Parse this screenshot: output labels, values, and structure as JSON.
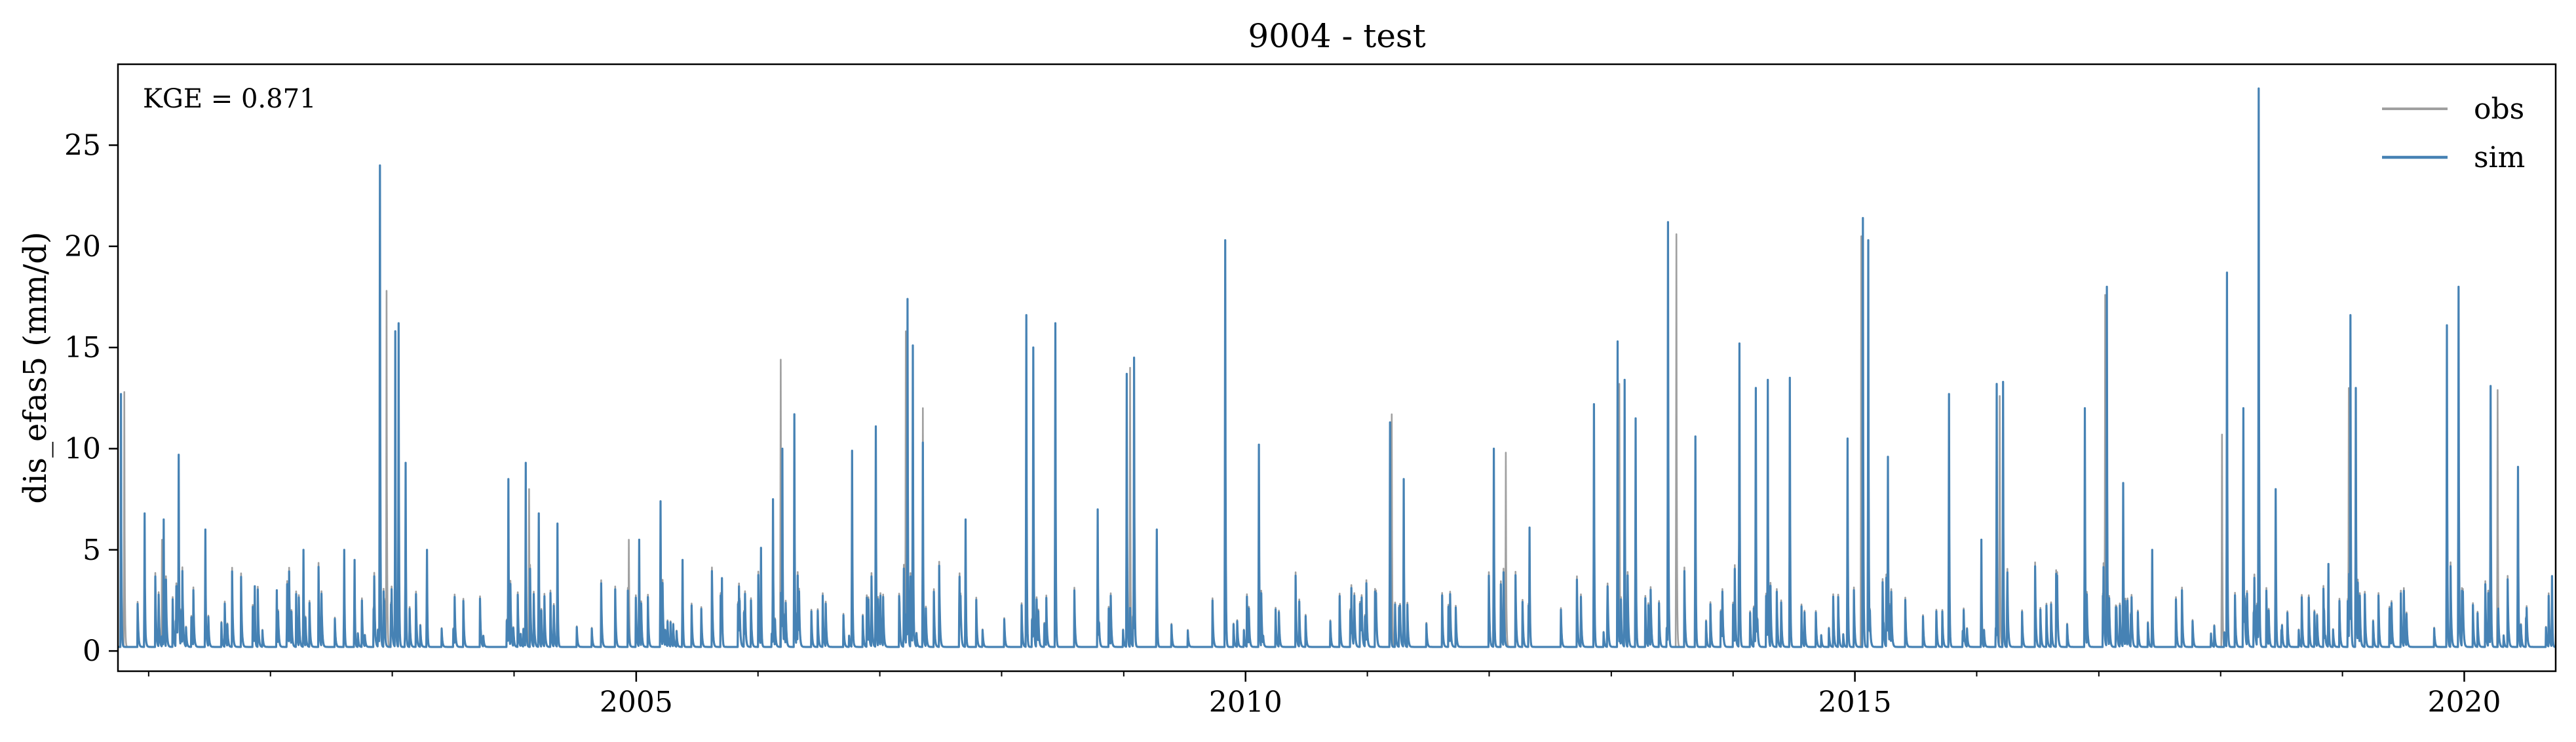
{
  "chart_data": {
    "type": "line",
    "title": "9004 - test",
    "xlabel": "",
    "ylabel": "dis_efas5 (mm/d)",
    "xlim": [
      "2000-10-01",
      "2020-10-01"
    ],
    "ylim": [
      -1,
      29
    ],
    "x_ticks": [
      {
        "date": "2005-01-01",
        "label": "2005"
      },
      {
        "date": "2010-01-01",
        "label": "2010"
      },
      {
        "date": "2015-01-01",
        "label": "2015"
      },
      {
        "date": "2020-01-01",
        "label": "2020"
      }
    ],
    "y_ticks": [
      0,
      5,
      10,
      15,
      20,
      25
    ],
    "grid": false,
    "legend_position": "upper right",
    "annotation": "KGE = 0.871",
    "baseflow": 0.2,
    "series": [
      {
        "name": "obs",
        "color": "#a0a0a0",
        "peaks": [
          [
            "2000-10-20",
            12.8
          ],
          [
            "2001-02-10",
            5.5
          ],
          [
            "2002-12-15",
            17.8
          ],
          [
            "2003-01-20",
            9.0
          ],
          [
            "2004-02-15",
            8.0
          ],
          [
            "2004-12-10",
            5.5
          ],
          [
            "2006-03-10",
            14.4
          ],
          [
            "2007-03-20",
            15.8
          ],
          [
            "2007-05-10",
            12.0
          ],
          [
            "2008-03-15",
            14.8
          ],
          [
            "2009-01-20",
            14.0
          ],
          [
            "2009-11-01",
            19.0
          ],
          [
            "2011-03-15",
            11.7
          ],
          [
            "2012-02-20",
            9.8
          ],
          [
            "2013-01-25",
            13.2
          ],
          [
            "2013-07-15",
            20.6
          ],
          [
            "2015-01-20",
            20.5
          ],
          [
            "2016-03-10",
            12.6
          ],
          [
            "2017-01-20",
            17.6
          ],
          [
            "2018-01-05",
            10.7
          ],
          [
            "2018-04-25",
            27.0
          ],
          [
            "2019-01-20",
            13.0
          ],
          [
            "2019-12-15",
            17.8
          ],
          [
            "2020-04-10",
            12.9
          ]
        ]
      },
      {
        "name": "sim",
        "color": "#4682b4",
        "peaks": [
          [
            "2000-10-10",
            12.7
          ],
          [
            "2000-12-20",
            6.8
          ],
          [
            "2001-02-15",
            6.5
          ],
          [
            "2001-04-01",
            9.7
          ],
          [
            "2001-06-20",
            6.0
          ],
          [
            "2001-11-15",
            3.2
          ],
          [
            "2002-01-20",
            3.0
          ],
          [
            "2002-04-10",
            5.0
          ],
          [
            "2002-08-10",
            5.0
          ],
          [
            "2002-09-10",
            4.5
          ],
          [
            "2002-11-25",
            24.0
          ],
          [
            "2003-01-10",
            15.8
          ],
          [
            "2003-01-20",
            16.2
          ],
          [
            "2003-02-10",
            9.3
          ],
          [
            "2003-04-15",
            5.0
          ],
          [
            "2003-12-15",
            8.5
          ],
          [
            "2004-02-05",
            9.3
          ],
          [
            "2004-03-15",
            6.8
          ],
          [
            "2004-05-10",
            6.3
          ],
          [
            "2005-01-10",
            5.5
          ],
          [
            "2005-03-15",
            7.4
          ],
          [
            "2005-05-20",
            4.5
          ],
          [
            "2005-09-15",
            3.6
          ],
          [
            "2006-01-10",
            5.1
          ],
          [
            "2006-02-15",
            7.5
          ],
          [
            "2006-03-15",
            10.0
          ],
          [
            "2006-04-20",
            11.7
          ],
          [
            "2006-10-10",
            9.9
          ],
          [
            "2006-12-20",
            11.1
          ],
          [
            "2007-03-25",
            17.4
          ],
          [
            "2007-04-10",
            15.1
          ],
          [
            "2007-05-10",
            10.3
          ],
          [
            "2007-09-15",
            6.5
          ],
          [
            "2008-03-15",
            16.6
          ],
          [
            "2008-04-05",
            15.0
          ],
          [
            "2008-06-10",
            16.2
          ],
          [
            "2008-10-15",
            7.0
          ],
          [
            "2009-01-10",
            13.7
          ],
          [
            "2009-02-01",
            14.5
          ],
          [
            "2009-04-10",
            6.0
          ],
          [
            "2009-11-01",
            20.3
          ],
          [
            "2010-02-10",
            10.2
          ],
          [
            "2011-03-10",
            11.3
          ],
          [
            "2011-04-20",
            8.5
          ],
          [
            "2012-01-15",
            10.0
          ],
          [
            "2012-05-01",
            6.1
          ],
          [
            "2012-11-10",
            12.2
          ],
          [
            "2013-01-20",
            15.3
          ],
          [
            "2013-02-10",
            13.4
          ],
          [
            "2013-03-15",
            11.5
          ],
          [
            "2013-06-20",
            21.2
          ],
          [
            "2013-09-10",
            10.6
          ],
          [
            "2014-01-20",
            15.2
          ],
          [
            "2014-03-10",
            13.0
          ],
          [
            "2014-04-15",
            13.4
          ],
          [
            "2014-06-20",
            13.5
          ],
          [
            "2014-12-10",
            10.5
          ],
          [
            "2015-01-25",
            21.4
          ],
          [
            "2015-02-10",
            20.3
          ],
          [
            "2015-04-10",
            9.6
          ],
          [
            "2015-10-10",
            12.7
          ],
          [
            "2016-01-15",
            5.5
          ],
          [
            "2016-03-01",
            13.2
          ],
          [
            "2016-03-20",
            13.3
          ],
          [
            "2016-11-20",
            12.0
          ],
          [
            "2017-01-25",
            18.0
          ],
          [
            "2017-03-15",
            8.3
          ],
          [
            "2017-06-10",
            5.0
          ],
          [
            "2018-01-20",
            18.7
          ],
          [
            "2018-03-10",
            12.0
          ],
          [
            "2018-04-25",
            27.8
          ],
          [
            "2018-06-15",
            8.0
          ],
          [
            "2018-11-20",
            4.3
          ],
          [
            "2019-01-25",
            16.6
          ],
          [
            "2019-02-10",
            13.0
          ],
          [
            "2019-11-10",
            16.1
          ],
          [
            "2019-12-15",
            18.0
          ],
          [
            "2020-03-20",
            13.1
          ],
          [
            "2020-06-10",
            9.1
          ],
          [
            "2020-09-20",
            3.7
          ]
        ]
      }
    ]
  }
}
